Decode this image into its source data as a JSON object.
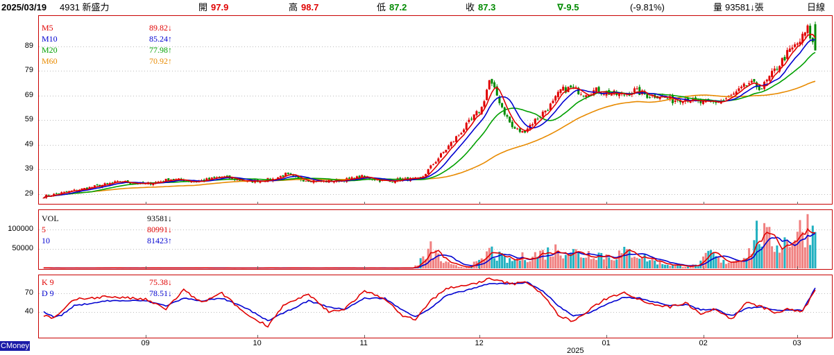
{
  "header": {
    "date": "2025/03/19",
    "stock": "4931 新盛力",
    "open_label": "開",
    "open": "97.9",
    "high_label": "高",
    "high": "98.7",
    "low_label": "低",
    "low": "87.2",
    "close_label": "收",
    "close": "87.3",
    "change": "∇-9.5",
    "change_pct": "(-9.81%)",
    "volume_label": "量",
    "volume": "93581↓張",
    "period": "日線"
  },
  "legend": {
    "price": [
      {
        "name": "M5",
        "value": "89.82↓",
        "color": "#e00000"
      },
      {
        "name": "M10",
        "value": "85.24↑",
        "color": "#0000d0"
      },
      {
        "name": "M20",
        "value": "77.98↑",
        "color": "#00a000"
      },
      {
        "name": "M60",
        "value": "70.92↑",
        "color": "#e88a00"
      }
    ],
    "volume": [
      {
        "name": "VOL",
        "value": "93581↓",
        "color": "#000000"
      },
      {
        "name": "5",
        "value": "80991↓",
        "color": "#e00000"
      },
      {
        "name": "10",
        "value": "81423↑",
        "color": "#0000d0"
      }
    ],
    "kd": [
      {
        "name": "K 9",
        "value": "75.38↓",
        "color": "#e00000"
      },
      {
        "name": "D 9",
        "value": "78.51↓",
        "color": "#0000d0"
      }
    ]
  },
  "brand": "CMoney",
  "chart_data": {
    "type": "candlestick",
    "price_axis": {
      "ticks": [
        29,
        39,
        49,
        59,
        69,
        79,
        89
      ],
      "range": [
        25,
        101
      ]
    },
    "volume_axis": {
      "ticks": [
        50000,
        100000
      ],
      "labels": [
        "50000",
        "100000"
      ],
      "range": [
        0,
        150000
      ]
    },
    "kd_axis": {
      "ticks": [
        40,
        70
      ],
      "range": [
        0,
        100
      ]
    },
    "x_ticks": [
      "09",
      "10",
      "11",
      "12",
      "01",
      "02",
      "03"
    ],
    "x_year_label": "2025",
    "colors": {
      "up": "#e00000",
      "down": "#008a00",
      "vol_up": "#f08080",
      "vol_down": "#20b0c0",
      "ma5": "#e00000",
      "ma10": "#0000d0",
      "ma20": "#00a000",
      "ma60": "#e88a00"
    },
    "price_keypoints": [
      [
        0,
        28
      ],
      [
        10,
        30
      ],
      [
        20,
        32
      ],
      [
        30,
        34
      ],
      [
        40,
        33
      ],
      [
        50,
        35
      ],
      [
        60,
        34
      ],
      [
        70,
        36
      ],
      [
        80,
        34
      ],
      [
        90,
        35
      ],
      [
        95,
        37
      ],
      [
        100,
        35
      ],
      [
        110,
        34
      ],
      [
        120,
        35
      ],
      [
        125,
        36
      ],
      [
        135,
        34
      ],
      [
        140,
        35
      ],
      [
        148,
        35
      ],
      [
        152,
        40
      ],
      [
        157,
        46
      ],
      [
        162,
        52
      ],
      [
        167,
        58
      ],
      [
        172,
        64
      ],
      [
        175,
        75
      ],
      [
        178,
        69
      ],
      [
        181,
        62
      ],
      [
        184,
        56
      ],
      [
        188,
        54
      ],
      [
        192,
        58
      ],
      [
        196,
        62
      ],
      [
        200,
        66
      ],
      [
        203,
        71
      ],
      [
        207,
        72
      ],
      [
        212,
        70
      ],
      [
        217,
        71
      ],
      [
        222,
        70
      ],
      [
        227,
        69
      ],
      [
        232,
        71
      ],
      [
        237,
        69
      ],
      [
        242,
        69
      ],
      [
        247,
        67
      ],
      [
        252,
        68
      ],
      [
        257,
        66
      ],
      [
        262,
        66
      ],
      [
        267,
        67
      ],
      [
        272,
        70
      ],
      [
        277,
        74
      ],
      [
        282,
        72
      ],
      [
        287,
        79
      ],
      [
        292,
        86
      ],
      [
        297,
        91
      ],
      [
        300,
        96
      ],
      [
        303,
        87
      ]
    ],
    "volume_keypoints": [
      [
        0,
        1000
      ],
      [
        145,
        1000
      ],
      [
        150,
        30000
      ],
      [
        152,
        48000
      ],
      [
        154,
        38000
      ],
      [
        156,
        20000
      ],
      [
        160,
        8000
      ],
      [
        165,
        3000
      ],
      [
        172,
        18000
      ],
      [
        175,
        48000
      ],
      [
        178,
        32000
      ],
      [
        183,
        18000
      ],
      [
        188,
        28000
      ],
      [
        193,
        35000
      ],
      [
        198,
        42000
      ],
      [
        203,
        50000
      ],
      [
        207,
        44000
      ],
      [
        212,
        35000
      ],
      [
        216,
        42000
      ],
      [
        222,
        30000
      ],
      [
        227,
        38000
      ],
      [
        232,
        42000
      ],
      [
        237,
        25000
      ],
      [
        242,
        15000
      ],
      [
        247,
        8000
      ],
      [
        252,
        6000
      ],
      [
        257,
        8000
      ],
      [
        262,
        40000
      ],
      [
        266,
        15000
      ],
      [
        272,
        22000
      ],
      [
        277,
        42000
      ],
      [
        280,
        90000
      ],
      [
        283,
        80000
      ],
      [
        288,
        60000
      ],
      [
        292,
        72000
      ],
      [
        296,
        90000
      ],
      [
        300,
        110000
      ],
      [
        303,
        93581
      ]
    ],
    "k_keypoints": [
      [
        0,
        35
      ],
      [
        4,
        30
      ],
      [
        7,
        40
      ],
      [
        12,
        60
      ],
      [
        25,
        65
      ],
      [
        40,
        60
      ],
      [
        48,
        45
      ],
      [
        55,
        75
      ],
      [
        62,
        55
      ],
      [
        70,
        70
      ],
      [
        80,
        35
      ],
      [
        88,
        18
      ],
      [
        94,
        50
      ],
      [
        104,
        68
      ],
      [
        112,
        40
      ],
      [
        118,
        45
      ],
      [
        126,
        73
      ],
      [
        134,
        62
      ],
      [
        140,
        36
      ],
      [
        146,
        28
      ],
      [
        152,
        58
      ],
      [
        158,
        78
      ],
      [
        166,
        82
      ],
      [
        175,
        93
      ],
      [
        184,
        85
      ],
      [
        190,
        88
      ],
      [
        196,
        68
      ],
      [
        202,
        35
      ],
      [
        208,
        25
      ],
      [
        214,
        42
      ],
      [
        220,
        60
      ],
      [
        228,
        72
      ],
      [
        234,
        60
      ],
      [
        240,
        52
      ],
      [
        246,
        48
      ],
      [
        252,
        55
      ],
      [
        258,
        38
      ],
      [
        264,
        45
      ],
      [
        270,
        28
      ],
      [
        276,
        55
      ],
      [
        282,
        48
      ],
      [
        288,
        38
      ],
      [
        292,
        45
      ],
      [
        298,
        40
      ],
      [
        303,
        75
      ]
    ],
    "d_keypoints": [
      [
        0,
        40
      ],
      [
        4,
        32
      ],
      [
        7,
        35
      ],
      [
        12,
        50
      ],
      [
        25,
        58
      ],
      [
        40,
        58
      ],
      [
        48,
        50
      ],
      [
        55,
        62
      ],
      [
        62,
        58
      ],
      [
        70,
        62
      ],
      [
        80,
        45
      ],
      [
        88,
        26
      ],
      [
        94,
        38
      ],
      [
        104,
        58
      ],
      [
        112,
        48
      ],
      [
        118,
        44
      ],
      [
        126,
        62
      ],
      [
        134,
        62
      ],
      [
        140,
        45
      ],
      [
        146,
        33
      ],
      [
        152,
        46
      ],
      [
        158,
        66
      ],
      [
        166,
        75
      ],
      [
        175,
        85
      ],
      [
        184,
        86
      ],
      [
        190,
        87
      ],
      [
        196,
        74
      ],
      [
        202,
        50
      ],
      [
        208,
        34
      ],
      [
        214,
        38
      ],
      [
        220,
        50
      ],
      [
        228,
        64
      ],
      [
        234,
        62
      ],
      [
        240,
        56
      ],
      [
        246,
        50
      ],
      [
        252,
        52
      ],
      [
        258,
        44
      ],
      [
        264,
        44
      ],
      [
        270,
        34
      ],
      [
        276,
        46
      ],
      [
        282,
        48
      ],
      [
        288,
        42
      ],
      [
        292,
        44
      ],
      [
        298,
        42
      ],
      [
        303,
        78.51
      ]
    ]
  }
}
